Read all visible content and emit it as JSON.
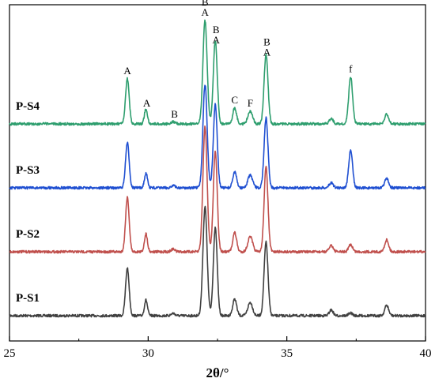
{
  "chart_data": {
    "type": "line",
    "xlabel": "2θ/°",
    "ylabel": "",
    "xlim": [
      25,
      40
    ],
    "x_ticks": [
      "25",
      "30",
      "35",
      "40"
    ],
    "y_ticks": [],
    "legend": "series labels at left of each curve",
    "grid": false,
    "offset_stacked": true,
    "peaks_shared": [
      {
        "pos": 29.25,
        "h": 1.0,
        "w": 0.065
      },
      {
        "pos": 29.92,
        "h": 0.33,
        "w": 0.055
      },
      {
        "pos": 30.9,
        "h": 0.05,
        "w": 0.07
      },
      {
        "pos": 32.05,
        "h": 2.3,
        "w": 0.075
      },
      {
        "pos": 32.42,
        "h": 1.85,
        "w": 0.07
      },
      {
        "pos": 33.12,
        "h": 0.35,
        "w": 0.07
      },
      {
        "pos": 33.68,
        "h": 0.28,
        "w": 0.085
      },
      {
        "pos": 34.25,
        "h": 1.55,
        "w": 0.07
      },
      {
        "pos": 36.6,
        "h": 0.12,
        "w": 0.07
      },
      {
        "pos": 37.3,
        "h": 0.1,
        "w": 0.07
      },
      {
        "pos": 38.6,
        "h": 0.22,
        "w": 0.07
      }
    ],
    "series": [
      {
        "name": "P-S1",
        "color": "#404040",
        "scale": 1.0,
        "f_peak": 0.05
      },
      {
        "name": "P-S2",
        "color": "#c0504d",
        "scale": 1.15,
        "f_peak": 0.12
      },
      {
        "name": "P-S3",
        "color": "#1f4fd1",
        "scale": 0.95,
        "f_peak": 0.75
      },
      {
        "name": "P-S4",
        "color": "#2e9e6e",
        "scale": 0.95,
        "f_peak": 0.95
      }
    ],
    "annotations": [
      {
        "text": "A",
        "x": 29.25
      },
      {
        "text": "A",
        "x": 29.95
      },
      {
        "text": "B",
        "x": 30.95
      },
      {
        "text": "B",
        "x": 32.05
      },
      {
        "text": "A",
        "x": 32.05
      },
      {
        "text": "B",
        "x": 32.45
      },
      {
        "text": "A",
        "x": 32.45
      },
      {
        "text": "C",
        "x": 33.12
      },
      {
        "text": "F",
        "x": 33.68
      },
      {
        "text": "B",
        "x": 34.28
      },
      {
        "text": "A",
        "x": 34.28
      },
      {
        "text": "f",
        "x": 37.3
      }
    ]
  }
}
